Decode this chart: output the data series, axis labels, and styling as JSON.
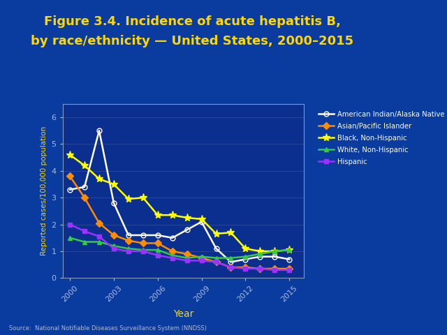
{
  "title_line1": "Figure 3.4. Incidence of acute hepatitis B,",
  "title_line2": "by race/ethnicity — United States, 2000–2015",
  "title_color": "#FFD700",
  "title_fontsize": 13,
  "xlabel": "Year",
  "ylabel": "Reported cases/100,000 population",
  "ylabel_color": "#FFD700",
  "xlabel_color": "#FFD700",
  "background_outer": "#0A3B9E",
  "background_plot": "#0A2F8F",
  "axis_color": "#8899BB",
  "tick_color": "#AABBDD",
  "source_text": "Source:  National Notifiable Diseases Surveillance System (NNDSS)",
  "years": [
    2000,
    2001,
    2002,
    2003,
    2004,
    2005,
    2006,
    2007,
    2008,
    2009,
    2010,
    2011,
    2012,
    2013,
    2014,
    2015
  ],
  "series": [
    {
      "label": "American Indian/Alaska Native",
      "color": "#FFFFFF",
      "marker": "o",
      "marker_face": "none",
      "linewidth": 1.8,
      "markersize": 5,
      "values": [
        3.3,
        3.4,
        5.5,
        2.8,
        1.6,
        1.6,
        1.6,
        1.5,
        1.8,
        2.1,
        1.1,
        0.6,
        0.7,
        0.8,
        0.8,
        0.7
      ]
    },
    {
      "label": "Asian/Pacific Islander",
      "color": "#FF8C00",
      "marker": "D",
      "marker_face": "#FF8C00",
      "linewidth": 1.8,
      "markersize": 5,
      "values": [
        3.8,
        3.0,
        2.05,
        1.6,
        1.4,
        1.3,
        1.3,
        1.0,
        0.9,
        0.75,
        0.6,
        0.4,
        0.4,
        0.35,
        0.35,
        0.35
      ]
    },
    {
      "label": "Black, Non-Hispanic",
      "color": "#FFFF00",
      "marker": "*",
      "marker_face": "#FFFF00",
      "linewidth": 1.8,
      "markersize": 8,
      "values": [
        4.6,
        4.2,
        3.7,
        3.5,
        2.95,
        3.0,
        2.35,
        2.35,
        2.25,
        2.2,
        1.65,
        1.7,
        1.1,
        1.0,
        1.0,
        1.05
      ]
    },
    {
      "label": "White, Non-Hispanic",
      "color": "#33CC44",
      "marker": "^",
      "marker_face": "#33CC44",
      "linewidth": 1.8,
      "markersize": 5,
      "values": [
        1.5,
        1.35,
        1.35,
        1.2,
        1.1,
        1.05,
        1.05,
        0.85,
        0.75,
        0.8,
        0.75,
        0.75,
        0.8,
        0.9,
        1.0,
        1.05
      ]
    },
    {
      "label": "Hispanic",
      "color": "#9933FF",
      "marker": "s",
      "marker_face": "#9933FF",
      "linewidth": 1.8,
      "markersize": 5,
      "values": [
        2.0,
        1.75,
        1.55,
        1.1,
        1.0,
        1.0,
        0.85,
        0.75,
        0.65,
        0.65,
        0.6,
        0.4,
        0.35,
        0.35,
        0.3,
        0.3
      ]
    }
  ],
  "ylim": [
    0,
    6.5
  ],
  "yticks": [
    0,
    1,
    2,
    3,
    4,
    5,
    6
  ],
  "xticks": [
    2000,
    2003,
    2006,
    2009,
    2012,
    2015
  ],
  "legend_text_color": "#FFFFFF",
  "grid_color": "#6677AA",
  "grid_alpha": 0.4
}
